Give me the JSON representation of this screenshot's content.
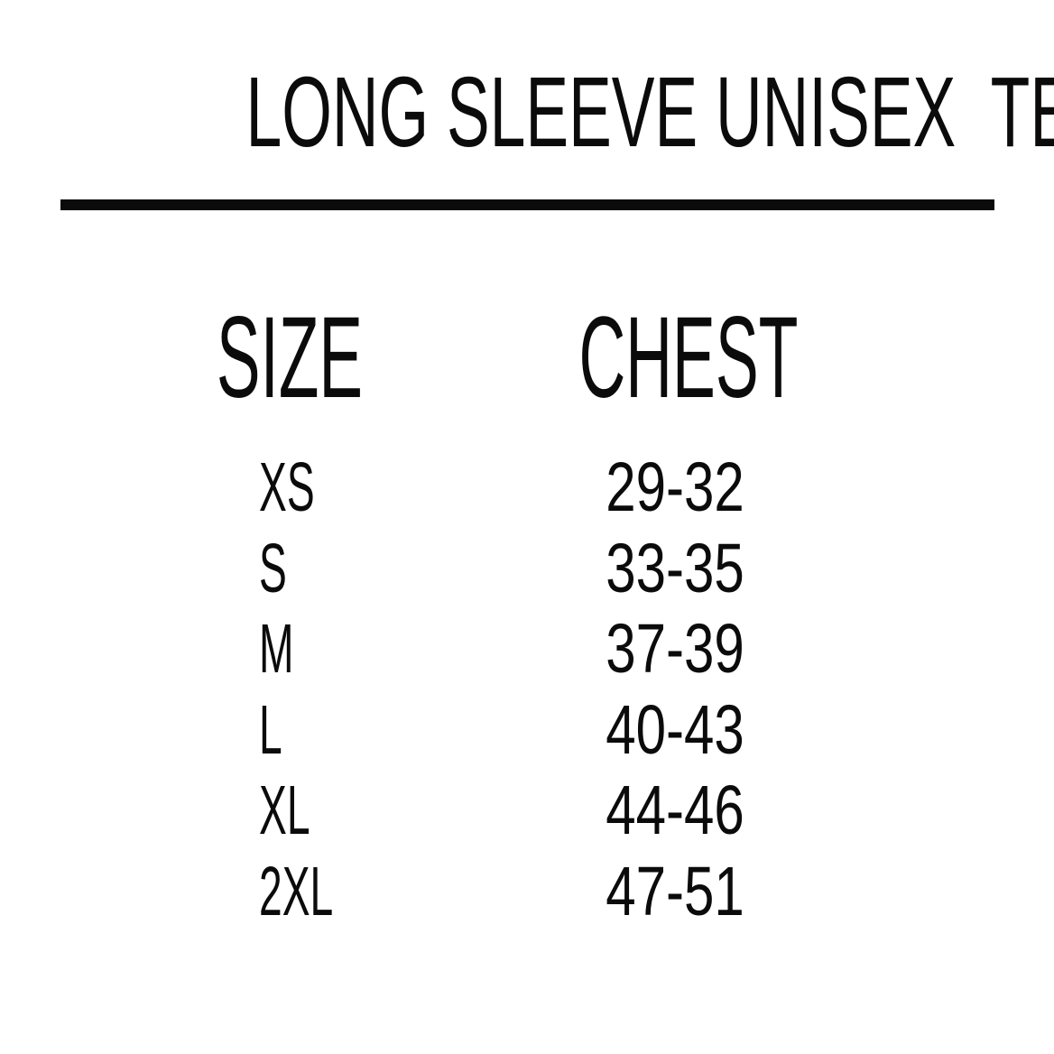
{
  "page": {
    "background": "#ffffff",
    "text_color": "#0b0b0b"
  },
  "chart_data": {
    "type": "table",
    "title": "LONG SLEEVE UNISEX  TEES",
    "columns": [
      "SIZE",
      "CHEST"
    ],
    "rows": [
      [
        "XS",
        "29-32"
      ],
      [
        "S",
        "33-35"
      ],
      [
        "M",
        "37-39"
      ],
      [
        "L",
        "40-43"
      ],
      [
        "XL",
        "44-46"
      ],
      [
        "2XL",
        "47-51"
      ]
    ],
    "layout": {
      "divider_under_title": true,
      "alignment": {
        "size_column": "left",
        "chest_column": "center"
      }
    }
  }
}
